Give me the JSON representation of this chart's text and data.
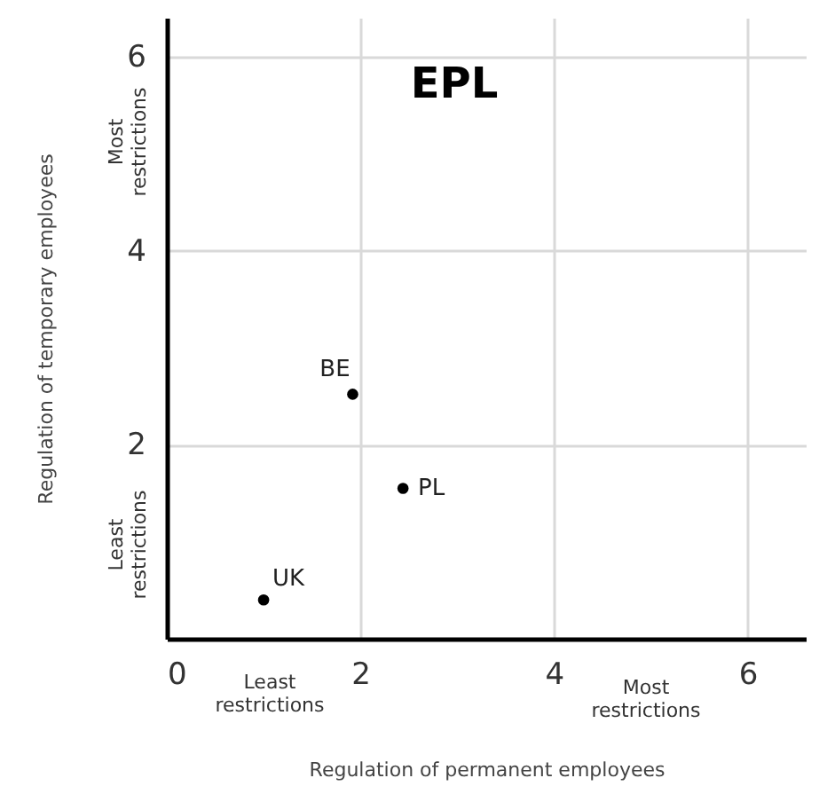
{
  "chart_data": {
    "type": "scatter",
    "title": "EPL",
    "xlabel": "Regulation of permanent employees",
    "ylabel": "Regulation of temporary employees",
    "series": [
      {
        "color": "#000000",
        "x": [
          1.92,
          2.44,
          1.0
        ],
        "values": [
          2.52,
          1.55,
          0.4
        ]
      }
    ],
    "annotations": [
      {
        "text": "BE",
        "x": 1.92,
        "y": 2.52
      },
      {
        "text": "PL",
        "x": 2.44,
        "y": 1.55
      },
      {
        "text": "UK",
        "x": 1.0,
        "y": 0.4
      },
      "Most restrictions",
      "Least restrictions",
      "Least restrictions",
      "Most restrictions"
    ],
    "xlim": [
      0,
      6.6
    ],
    "ylim": [
      0,
      6.4
    ],
    "xticks": [
      0,
      2,
      4,
      6
    ],
    "yticks": [
      {
        "value": 0,
        "label": null
      },
      2,
      4,
      6
    ],
    "grid": true,
    "marker": "circle"
  }
}
